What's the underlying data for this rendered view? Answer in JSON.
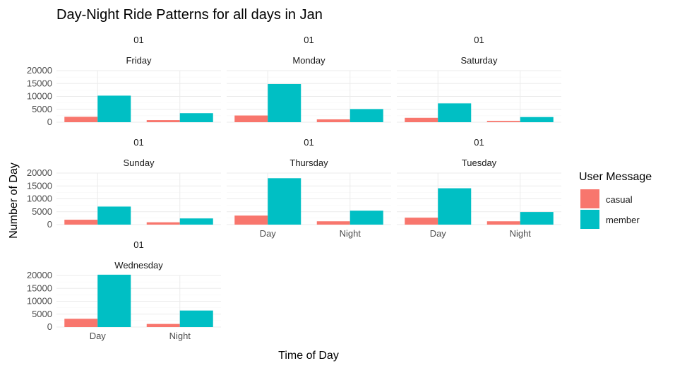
{
  "chart_data": {
    "type": "bar",
    "title": "Day-Night Ride Patterns for all days in Jan",
    "xlabel": "Time of Day",
    "ylabel": "Number of Day",
    "categories": [
      "Day",
      "Night"
    ],
    "ylim": [
      0,
      20000
    ],
    "yticks": [
      0,
      5000,
      10000,
      15000,
      20000
    ],
    "grid": true,
    "legend": {
      "title": "User Message",
      "position": "right",
      "entries": [
        {
          "name": "casual",
          "color": "#F8766D"
        },
        {
          "name": "member",
          "color": "#00BFC4"
        }
      ]
    },
    "facets": [
      {
        "month": "01",
        "weekday": "Friday",
        "series": [
          {
            "name": "casual",
            "values": [
              2100,
              800
            ]
          },
          {
            "name": "member",
            "values": [
              10300,
              3500
            ]
          }
        ]
      },
      {
        "month": "01",
        "weekday": "Monday",
        "series": [
          {
            "name": "casual",
            "values": [
              2600,
              1100
            ]
          },
          {
            "name": "member",
            "values": [
              14800,
              5100
            ]
          }
        ]
      },
      {
        "month": "01",
        "weekday": "Saturday",
        "series": [
          {
            "name": "casual",
            "values": [
              1700,
              500
            ]
          },
          {
            "name": "member",
            "values": [
              7300,
              2000
            ]
          }
        ]
      },
      {
        "month": "01",
        "weekday": "Sunday",
        "series": [
          {
            "name": "casual",
            "values": [
              1900,
              900
            ]
          },
          {
            "name": "member",
            "values": [
              7000,
              2400
            ]
          }
        ]
      },
      {
        "month": "01",
        "weekday": "Thursday",
        "series": [
          {
            "name": "casual",
            "values": [
              3500,
              1300
            ]
          },
          {
            "name": "member",
            "values": [
              18000,
              5400
            ]
          }
        ]
      },
      {
        "month": "01",
        "weekday": "Tuesday",
        "series": [
          {
            "name": "casual",
            "values": [
              2700,
              1300
            ]
          },
          {
            "name": "member",
            "values": [
              14100,
              4900
            ]
          }
        ]
      },
      {
        "month": "01",
        "weekday": "Wednesday",
        "series": [
          {
            "name": "casual",
            "values": [
              3200,
              1200
            ]
          },
          {
            "name": "member",
            "values": [
              20300,
              6400
            ]
          }
        ]
      }
    ]
  }
}
